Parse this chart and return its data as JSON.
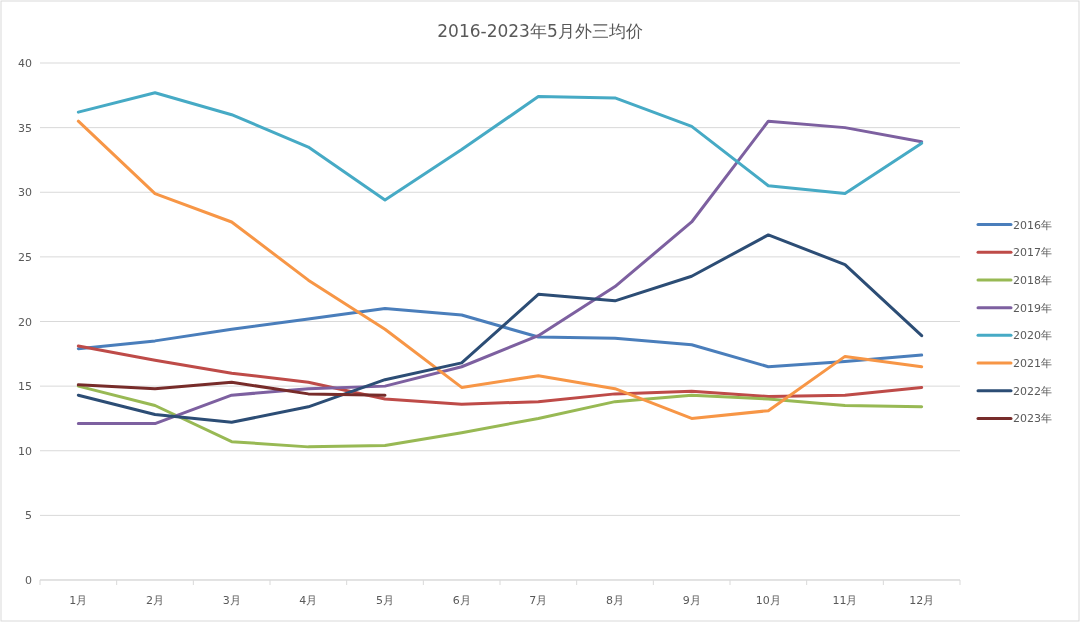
{
  "chart_data": {
    "type": "line",
    "title": "2016-2023年5月外三均价",
    "categories": [
      "1月",
      "2月",
      "3月",
      "4月",
      "5月",
      "6月",
      "7月",
      "8月",
      "9月",
      "10月",
      "11月",
      "12月"
    ],
    "series": [
      {
        "name": "2016年",
        "color": "#4a7ebb",
        "values": [
          17.9,
          18.5,
          19.4,
          20.2,
          21.0,
          20.5,
          18.8,
          18.7,
          18.2,
          16.5,
          16.9,
          17.4
        ]
      },
      {
        "name": "2017年",
        "color": "#be4b48",
        "values": [
          18.1,
          17.0,
          16.0,
          15.3,
          14.0,
          13.6,
          13.8,
          14.4,
          14.6,
          14.2,
          14.3,
          14.9
        ]
      },
      {
        "name": "2018年",
        "color": "#98b954",
        "values": [
          15.0,
          13.5,
          10.7,
          10.3,
          10.4,
          11.4,
          12.5,
          13.8,
          14.3,
          14.0,
          13.5,
          13.4
        ]
      },
      {
        "name": "2019年",
        "color": "#7d60a0",
        "values": [
          12.1,
          12.1,
          14.3,
          14.8,
          15.0,
          16.5,
          18.9,
          22.7,
          27.7,
          35.5,
          35.0,
          33.9
        ]
      },
      {
        "name": "2020年",
        "color": "#46aac5",
        "values": [
          36.2,
          37.7,
          36.0,
          33.5,
          29.4,
          33.3,
          37.4,
          37.3,
          35.1,
          30.5,
          29.9,
          33.8
        ]
      },
      {
        "name": "2021年",
        "color": "#f79646",
        "values": [
          35.5,
          29.9,
          27.7,
          23.2,
          19.4,
          14.9,
          15.8,
          14.8,
          12.5,
          13.1,
          17.3,
          16.5
        ]
      },
      {
        "name": "2022年",
        "color": "#2c4d75",
        "values": [
          14.3,
          12.8,
          12.2,
          13.4,
          15.5,
          16.8,
          22.1,
          21.6,
          23.5,
          26.7,
          24.4,
          18.9
        ]
      },
      {
        "name": "2023年",
        "color": "#772c2a",
        "values": [
          15.1,
          14.8,
          15.3,
          14.4,
          14.3,
          null,
          null,
          null,
          null,
          null,
          null,
          null
        ]
      }
    ],
    "ylim": [
      0,
      40
    ],
    "yticks": [
      0,
      5,
      10,
      15,
      20,
      25,
      30,
      35,
      40
    ],
    "grid": "y",
    "legend": "right",
    "marker": "none",
    "line_style": "solid"
  }
}
